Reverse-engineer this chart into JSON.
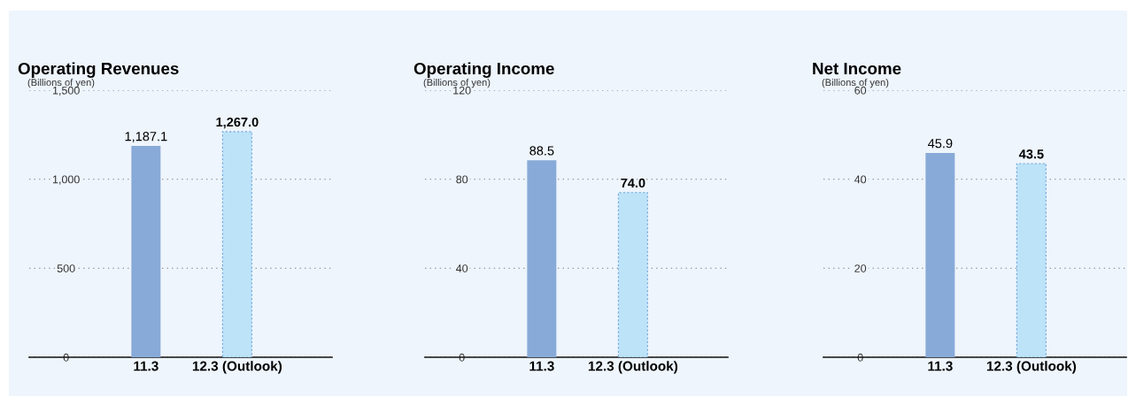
{
  "chart_data": [
    {
      "type": "bar",
      "title": "Operating Revenues",
      "ylabel": "(Billions of yen)",
      "categories": [
        "11.3",
        "12.3 (Outlook)"
      ],
      "values": [
        1187.1,
        1267.0
      ],
      "colors": [
        "#88aad8",
        "#bde3f8"
      ],
      "ylim": [
        0,
        1500
      ],
      "yticks": [
        {
          "value": 0,
          "label": "0"
        },
        {
          "value": 500,
          "label": "500"
        },
        {
          "value": 1000,
          "label": "1,000"
        },
        {
          "value": 1500,
          "label": "1,500"
        }
      ],
      "value_labels": [
        "1,187.1",
        "1,267.0"
      ],
      "grid": "y"
    },
    {
      "type": "bar",
      "title": "Operating Income",
      "ylabel": "(Billions of yen)",
      "categories": [
        "11.3",
        "12.3 (Outlook)"
      ],
      "values": [
        88.5,
        74.0
      ],
      "colors": [
        "#88aad8",
        "#bde3f8"
      ],
      "ylim": [
        0,
        120
      ],
      "yticks": [
        0,
        40,
        80,
        120
      ],
      "value_labels": [
        "88.5",
        "74.0"
      ],
      "grid": "y"
    },
    {
      "type": "bar",
      "title": "Net Income",
      "ylabel": "(Billions of yen)",
      "categories": [
        "11.3",
        "12.3 (Outlook)"
      ],
      "values": [
        45.9,
        43.5
      ],
      "colors": [
        "#88aad8",
        "#bde3f8"
      ],
      "ylim": [
        0,
        60
      ],
      "yticks": [
        0,
        20,
        40,
        60
      ],
      "value_labels": [
        "45.9",
        "43.5"
      ],
      "grid": "y"
    }
  ]
}
